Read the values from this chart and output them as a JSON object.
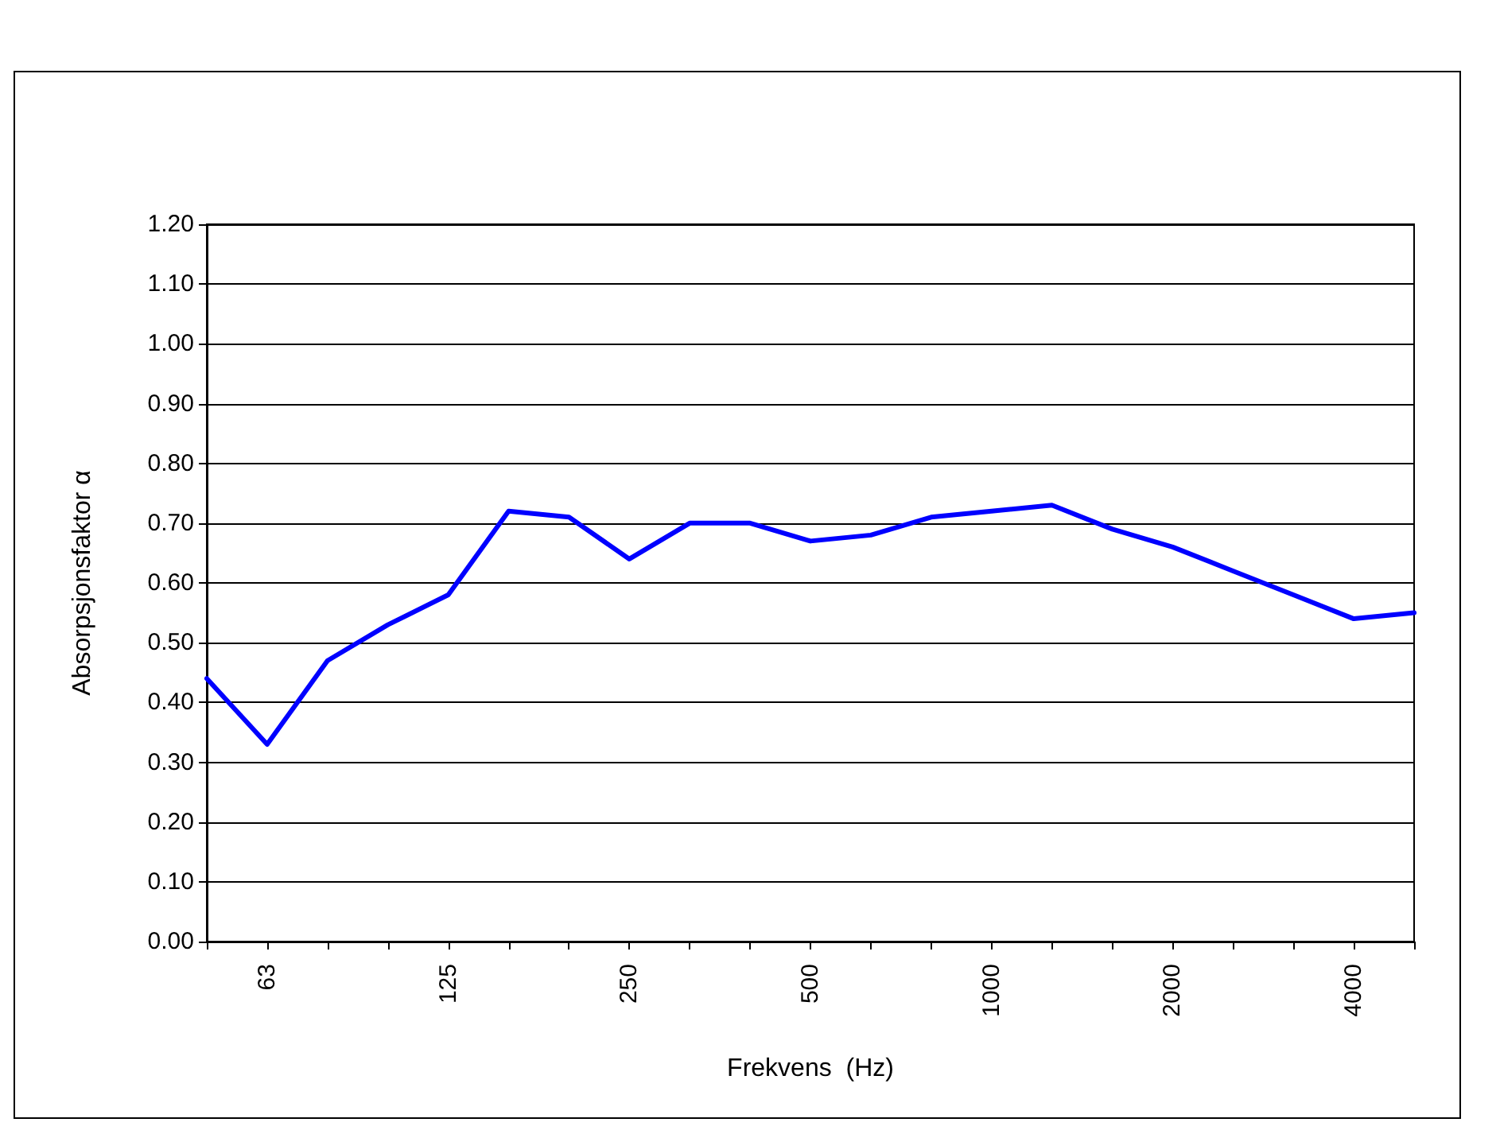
{
  "chart_data": {
    "type": "line",
    "xlabel": "Frekvens  (Hz)",
    "ylabel": "Absorpsjonsfaktor α",
    "categories": [
      null,
      "63",
      null,
      null,
      "125",
      null,
      null,
      "250",
      null,
      null,
      "500",
      null,
      null,
      "1000",
      null,
      null,
      "2000",
      null,
      null,
      "4000",
      null
    ],
    "series": [
      {
        "color": "#0000ff",
        "values": [
          0.44,
          0.33,
          0.47,
          0.53,
          0.58,
          0.72,
          0.71,
          0.64,
          0.7,
          0.7,
          0.67,
          0.68,
          0.71,
          0.72,
          0.73,
          0.69,
          0.66,
          0.62,
          0.58,
          0.54,
          0.55
        ]
      }
    ],
    "ylim": [
      0,
      1.2
    ],
    "yticks": [
      {
        "value": 0,
        "label": "0.00"
      },
      {
        "value": 0.1,
        "label": "0.10"
      },
      {
        "value": 0.2,
        "label": "0.20"
      },
      {
        "value": 0.3,
        "label": "0.30"
      },
      {
        "value": 0.4,
        "label": "0.40"
      },
      {
        "value": 0.5,
        "label": "0.50"
      },
      {
        "value": 0.6,
        "label": "0.60"
      },
      {
        "value": 0.7,
        "label": "0.70"
      },
      {
        "value": 0.8,
        "label": "0.80"
      },
      {
        "value": 0.9,
        "label": "0.90"
      },
      {
        "value": 1.0,
        "label": "1.00"
      },
      {
        "value": 1.1,
        "label": "1.10"
      },
      {
        "value": 1.2,
        "label": "1.20"
      }
    ],
    "grid": "y",
    "marker": "none",
    "line_style": "solid"
  }
}
